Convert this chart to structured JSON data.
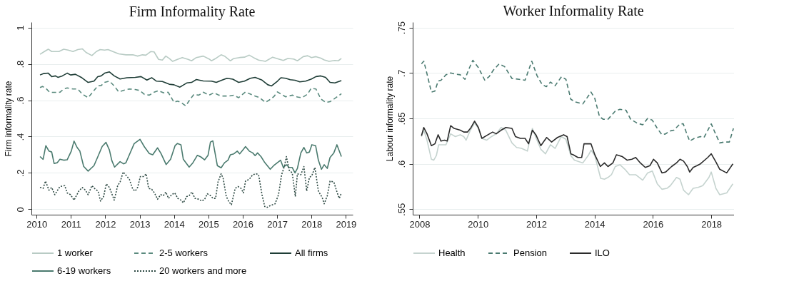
{
  "chart_data": [
    {
      "type": "line",
      "title": "Firm Informality Rate",
      "ylabel": "Firm informality rate",
      "xlim": [
        2009.85,
        2019.2
      ],
      "ylim": [
        -0.03,
        1.03
      ],
      "xticks": [
        2010,
        2011,
        2012,
        2013,
        2014,
        2015,
        2016,
        2017,
        2018,
        2019
      ],
      "yticks": [
        {
          "value": 0,
          "label": "0"
        },
        {
          "value": 0.2,
          "label": ".2"
        },
        {
          "value": 0.4,
          "label": ".4"
        },
        {
          "value": 0.6,
          "label": ".6"
        },
        {
          "value": 0.8,
          "label": ".8"
        },
        {
          "value": 1,
          "label": "1"
        }
      ],
      "grid": "y",
      "legend": "bottom",
      "marker": "none",
      "series": [
        {
          "name": "1 worker",
          "color": "#b8cbc4",
          "line_style": "solid",
          "x": [
            2010.1,
            2010.21,
            2010.34,
            2010.44,
            2010.65,
            2010.79,
            2010.92,
            2011.06,
            2011.2,
            2011.33,
            2011.44,
            2011.61,
            2011.74,
            2011.85,
            2011.98,
            2012.08,
            2012.22,
            2012.39,
            2012.6,
            2012.8,
            2012.94,
            2013.08,
            2013.18,
            2013.32,
            2013.42,
            2013.55,
            2013.66,
            2013.76,
            2013.86,
            2013.96,
            2014.1,
            2014.24,
            2014.41,
            2014.51,
            2014.65,
            2014.85,
            2015.02,
            2015.09,
            2015.23,
            2015.37,
            2015.47,
            2015.64,
            2015.74,
            2015.91,
            2016.05,
            2016.19,
            2016.32,
            2016.46,
            2016.66,
            2016.87,
            2017.04,
            2017.18,
            2017.31,
            2017.48,
            2017.59,
            2017.76,
            2017.89,
            2018.0,
            2018.13,
            2018.27,
            2018.37,
            2018.51,
            2018.68,
            2018.78,
            2018.87
          ],
          "values": [
            0.853,
            0.866,
            0.881,
            0.868,
            0.868,
            0.881,
            0.876,
            0.868,
            0.879,
            0.883,
            0.863,
            0.846,
            0.868,
            0.879,
            0.876,
            0.879,
            0.868,
            0.855,
            0.85,
            0.85,
            0.843,
            0.85,
            0.848,
            0.868,
            0.866,
            0.825,
            0.821,
            0.843,
            0.83,
            0.814,
            0.825,
            0.835,
            0.825,
            0.817,
            0.835,
            0.843,
            0.827,
            0.817,
            0.832,
            0.85,
            0.843,
            0.817,
            0.83,
            0.835,
            0.837,
            0.848,
            0.834,
            0.821,
            0.814,
            0.837,
            0.827,
            0.819,
            0.83,
            0.827,
            0.817,
            0.84,
            0.845,
            0.835,
            0.84,
            0.832,
            0.822,
            0.814,
            0.819,
            0.817,
            0.83
          ]
        },
        {
          "name": "2-5 workers",
          "color": "#5a8a7e",
          "line_style": "dashed",
          "x": [
            2010.1,
            2010.17,
            2010.27,
            2010.38,
            2010.51,
            2010.68,
            2010.79,
            2010.89,
            2011.06,
            2011.2,
            2011.33,
            2011.5,
            2011.64,
            2011.78,
            2011.88,
            2011.98,
            2012.12,
            2012.26,
            2012.39,
            2012.56,
            2012.7,
            2012.87,
            2013.01,
            2013.14,
            2013.28,
            2013.42,
            2013.55,
            2013.69,
            2013.83,
            2014.0,
            2014.1,
            2014.2,
            2014.34,
            2014.48,
            2014.58,
            2014.72,
            2014.85,
            2015.02,
            2015.16,
            2015.3,
            2015.43,
            2015.6,
            2015.74,
            2015.88,
            2016.08,
            2016.19,
            2016.36,
            2016.49,
            2016.66,
            2016.77,
            2016.9,
            2017.01,
            2017.11,
            2017.25,
            2017.45,
            2017.59,
            2017.72,
            2017.89,
            2017.99,
            2018.13,
            2018.27,
            2018.41,
            2018.54,
            2018.71,
            2018.87
          ],
          "values": [
            0.67,
            0.676,
            0.666,
            0.644,
            0.643,
            0.644,
            0.662,
            0.668,
            0.662,
            0.662,
            0.634,
            0.614,
            0.646,
            0.679,
            0.681,
            0.698,
            0.705,
            0.679,
            0.646,
            0.656,
            0.662,
            0.659,
            0.653,
            0.632,
            0.628,
            0.644,
            0.653,
            0.641,
            0.644,
            0.588,
            0.595,
            0.588,
            0.569,
            0.608,
            0.632,
            0.628,
            0.644,
            0.628,
            0.641,
            0.628,
            0.623,
            0.623,
            0.628,
            0.614,
            0.646,
            0.636,
            0.623,
            0.614,
            0.588,
            0.601,
            0.619,
            0.646,
            0.634,
            0.619,
            0.628,
            0.618,
            0.614,
            0.634,
            0.666,
            0.662,
            0.608,
            0.588,
            0.592,
            0.614,
            0.636
          ]
        },
        {
          "name": "All firms",
          "color": "#1e3d36",
          "line_style": "solid",
          "x": [
            2010.1,
            2010.21,
            2010.34,
            2010.44,
            2010.55,
            2010.62,
            2010.75,
            2010.89,
            2010.99,
            2011.13,
            2011.3,
            2011.5,
            2011.67,
            2011.78,
            2011.88,
            2011.98,
            2012.12,
            2012.26,
            2012.43,
            2012.63,
            2012.87,
            2013.04,
            2013.21,
            2013.35,
            2013.49,
            2013.66,
            2013.86,
            2014.0,
            2014.17,
            2014.37,
            2014.51,
            2014.65,
            2014.85,
            2015.09,
            2015.23,
            2015.4,
            2015.54,
            2015.71,
            2015.88,
            2016.05,
            2016.22,
            2016.36,
            2016.56,
            2016.73,
            2016.84,
            2017.01,
            2017.11,
            2017.25,
            2017.38,
            2017.52,
            2017.66,
            2017.83,
            2018.0,
            2018.13,
            2018.27,
            2018.41,
            2018.54,
            2018.68,
            2018.87
          ],
          "values": [
            0.739,
            0.747,
            0.749,
            0.73,
            0.734,
            0.726,
            0.734,
            0.749,
            0.739,
            0.743,
            0.726,
            0.698,
            0.705,
            0.73,
            0.734,
            0.749,
            0.756,
            0.734,
            0.717,
            0.724,
            0.726,
            0.73,
            0.711,
            0.724,
            0.705,
            0.703,
            0.688,
            0.685,
            0.672,
            0.695,
            0.698,
            0.714,
            0.706,
            0.705,
            0.698,
            0.711,
            0.721,
            0.716,
            0.698,
            0.705,
            0.721,
            0.726,
            0.711,
            0.685,
            0.679,
            0.705,
            0.724,
            0.721,
            0.713,
            0.71,
            0.701,
            0.705,
            0.717,
            0.73,
            0.734,
            0.726,
            0.698,
            0.695,
            0.708
          ]
        },
        {
          "name": "6-19 workers",
          "color": "#4a7a6e",
          "line_style": "solid",
          "x": [
            2010.1,
            2010.19,
            2010.27,
            2010.36,
            2010.44,
            2010.51,
            2010.6,
            2010.68,
            2010.79,
            2010.89,
            2011.01,
            2011.09,
            2011.18,
            2011.26,
            2011.37,
            2011.5,
            2011.67,
            2011.78,
            2011.91,
            2012.02,
            2012.12,
            2012.19,
            2012.27,
            2012.43,
            2012.53,
            2012.6,
            2012.7,
            2012.84,
            2013.01,
            2013.14,
            2013.28,
            2013.38,
            2013.52,
            2013.62,
            2013.77,
            2013.9,
            2014.03,
            2014.1,
            2014.2,
            2014.27,
            2014.44,
            2014.55,
            2014.68,
            2014.78,
            2014.89,
            2014.99,
            2015.06,
            2015.13,
            2015.26,
            2015.37,
            2015.47,
            2015.57,
            2015.64,
            2015.74,
            2015.84,
            2015.91,
            2016.02,
            2016.08,
            2016.19,
            2016.29,
            2016.36,
            2016.43,
            2016.53,
            2016.63,
            2016.8,
            2016.9,
            2017.1,
            2017.18,
            2017.27,
            2017.35,
            2017.44,
            2017.52,
            2017.59,
            2017.69,
            2017.78,
            2017.86,
            2017.94,
            2018.01,
            2018.12,
            2018.2,
            2018.29,
            2018.37,
            2018.46,
            2018.54,
            2018.65,
            2018.74,
            2018.87
          ],
          "values": [
            0.29,
            0.275,
            0.35,
            0.32,
            0.315,
            0.252,
            0.256,
            0.275,
            0.27,
            0.272,
            0.32,
            0.375,
            0.34,
            0.32,
            0.236,
            0.21,
            0.24,
            0.288,
            0.346,
            0.368,
            0.326,
            0.268,
            0.232,
            0.262,
            0.25,
            0.256,
            0.3,
            0.361,
            0.385,
            0.343,
            0.307,
            0.3,
            0.338,
            0.307,
            0.246,
            0.275,
            0.35,
            0.362,
            0.355,
            0.275,
            0.232,
            0.256,
            0.297,
            0.288,
            0.272,
            0.297,
            0.37,
            0.376,
            0.24,
            0.228,
            0.256,
            0.27,
            0.3,
            0.305,
            0.32,
            0.305,
            0.33,
            0.345,
            0.32,
            0.31,
            0.295,
            0.31,
            0.29,
            0.26,
            0.22,
            0.24,
            0.27,
            0.23,
            0.245,
            0.23,
            0.23,
            0.2,
            0.225,
            0.31,
            0.34,
            0.31,
            0.315,
            0.355,
            0.35,
            0.27,
            0.22,
            0.245,
            0.225,
            0.285,
            0.31,
            0.355,
            0.29
          ]
        },
        {
          "name": "20 workers and more",
          "color": "#2e4a44",
          "line_style": "dotted",
          "x": [
            2010.1,
            2010.19,
            2010.26,
            2010.36,
            2010.44,
            2010.53,
            2010.68,
            2010.82,
            2010.89,
            2010.99,
            2011.09,
            2011.23,
            2011.33,
            2011.42,
            2011.5,
            2011.61,
            2011.71,
            2011.79,
            2011.86,
            2011.95,
            2012.03,
            2012.12,
            2012.26,
            2012.36,
            2012.43,
            2012.52,
            2012.61,
            2012.7,
            2012.8,
            2012.87,
            2012.94,
            2013.02,
            2013.11,
            2013.19,
            2013.26,
            2013.35,
            2013.43,
            2013.52,
            2013.61,
            2013.69,
            2013.76,
            2013.84,
            2013.93,
            2014.02,
            2014.11,
            2014.2,
            2014.27,
            2014.37,
            2014.44,
            2014.52,
            2014.61,
            2014.72,
            2014.81,
            2014.89,
            2014.97,
            2015.06,
            2015.13,
            2015.21,
            2015.28,
            2015.37,
            2015.43,
            2015.52,
            2015.6,
            2015.67,
            2015.78,
            2015.86,
            2015.95,
            2016.02,
            2016.08,
            2016.19,
            2016.29,
            2016.39,
            2016.46,
            2016.56,
            2016.64,
            2016.71,
            2016.8,
            2016.94,
            2017.04,
            2017.13,
            2017.21,
            2017.27,
            2017.35,
            2017.44,
            2017.53,
            2017.59,
            2017.69,
            2017.78,
            2017.86,
            2017.94,
            2018.01,
            2018.1,
            2018.2,
            2018.31,
            2018.37,
            2018.46,
            2018.54,
            2018.65,
            2018.75,
            2018.81,
            2018.87
          ],
          "values": [
            0.12,
            0.115,
            0.155,
            0.105,
            0.12,
            0.08,
            0.125,
            0.13,
            0.09,
            0.08,
            0.05,
            0.1,
            0.12,
            0.105,
            0.08,
            0.13,
            0.11,
            0.1,
            0.045,
            0.07,
            0.14,
            0.12,
            0.05,
            0.13,
            0.15,
            0.205,
            0.185,
            0.165,
            0.11,
            0.1,
            0.12,
            0.18,
            0.18,
            0.195,
            0.115,
            0.11,
            0.09,
            0.055,
            0.08,
            0.075,
            0.095,
            0.06,
            0.08,
            0.09,
            0.06,
            0.05,
            0.035,
            0.07,
            0.075,
            0.095,
            0.06,
            0.055,
            0.045,
            0.055,
            0.085,
            0.075,
            0.06,
            0.06,
            0.15,
            0.195,
            0.17,
            0.07,
            0.04,
            0.025,
            0.115,
            0.125,
            0.115,
            0.09,
            0.155,
            0.165,
            0.19,
            0.195,
            0.19,
            0.08,
            0.015,
            0.01,
            0.02,
            0.03,
            0.08,
            0.19,
            0.235,
            0.29,
            0.215,
            0.2,
            0.07,
            0.195,
            0.19,
            0.235,
            0.1,
            0.175,
            0.185,
            0.23,
            0.1,
            0.065,
            0.03,
            0.075,
            0.155,
            0.15,
            0.09,
            0.06,
            0.09
          ]
        }
      ]
    },
    {
      "type": "line",
      "title": "Worker Informality Rate",
      "ylabel": "Labour informality rate",
      "xlim": [
        2007.77,
        2018.78
      ],
      "ylim": [
        0.544,
        0.756
      ],
      "xticks": [
        2008,
        2010,
        2012,
        2014,
        2016,
        2018
      ],
      "yticks": [
        {
          "value": 0.55,
          "label": ".55"
        },
        {
          "value": 0.6,
          "label": ".6"
        },
        {
          "value": 0.65,
          "label": ".65"
        },
        {
          "value": 0.7,
          "label": ".7"
        },
        {
          "value": 0.75,
          "label": ".75"
        }
      ],
      "grid": "y",
      "legend": "bottom",
      "marker": "none",
      "series": [
        {
          "name": "Health",
          "color": "#c5d3cf",
          "line_style": "solid",
          "x": [
            2008.07,
            2008.15,
            2008.26,
            2008.41,
            2008.49,
            2008.58,
            2008.66,
            2008.78,
            2008.91,
            2009.07,
            2009.23,
            2009.4,
            2009.52,
            2009.6,
            2009.73,
            2009.89,
            2010.02,
            2010.14,
            2010.3,
            2010.47,
            2010.63,
            2010.8,
            2010.96,
            2011.17,
            2011.33,
            2011.5,
            2011.7,
            2011.87,
            2011.99,
            2012.16,
            2012.32,
            2012.49,
            2012.65,
            2012.86,
            2013.02,
            2013.19,
            2013.31,
            2013.6,
            2013.8,
            2013.88,
            2014.01,
            2014.21,
            2014.34,
            2014.46,
            2014.58,
            2014.71,
            2014.87,
            2015.04,
            2015.2,
            2015.41,
            2015.65,
            2015.82,
            2015.98,
            2016.15,
            2016.31,
            2016.48,
            2016.6,
            2016.81,
            2016.93,
            2017.05,
            2017.22,
            2017.38,
            2017.55,
            2017.71,
            2017.92,
            2018.0,
            2018.16,
            2018.29,
            2018.53,
            2018.74
          ],
          "values": [
            0.63,
            0.637,
            0.626,
            0.605,
            0.604,
            0.609,
            0.621,
            0.621,
            0.621,
            0.633,
            0.63,
            0.632,
            0.63,
            0.626,
            0.636,
            0.645,
            0.639,
            0.628,
            0.626,
            0.63,
            0.633,
            0.64,
            0.637,
            0.623,
            0.618,
            0.617,
            0.614,
            0.639,
            0.629,
            0.616,
            0.611,
            0.621,
            0.617,
            0.63,
            0.627,
            0.609,
            0.604,
            0.601,
            0.61,
            0.615,
            0.609,
            0.584,
            0.583,
            0.585,
            0.588,
            0.597,
            0.599,
            0.594,
            0.588,
            0.588,
            0.582,
            0.59,
            0.592,
            0.578,
            0.572,
            0.573,
            0.576,
            0.585,
            0.583,
            0.571,
            0.566,
            0.573,
            0.574,
            0.576,
            0.585,
            0.591,
            0.573,
            0.566,
            0.568,
            0.578
          ]
        },
        {
          "name": "Pension",
          "color": "#4a7a70",
          "line_style": "dashed",
          "x": [
            2008.07,
            2008.15,
            2008.26,
            2008.41,
            2008.53,
            2008.64,
            2008.74,
            2008.91,
            2009.07,
            2009.19,
            2009.4,
            2009.56,
            2009.69,
            2009.83,
            2010.02,
            2010.24,
            2010.39,
            2010.53,
            2010.73,
            2010.92,
            2011.17,
            2011.42,
            2011.62,
            2011.85,
            2012.03,
            2012.21,
            2012.35,
            2012.49,
            2012.65,
            2012.87,
            2013.02,
            2013.19,
            2013.35,
            2013.6,
            2013.88,
            2014.01,
            2014.17,
            2014.3,
            2014.46,
            2014.71,
            2014.87,
            2015.08,
            2015.24,
            2015.45,
            2015.65,
            2015.82,
            2015.98,
            2016.15,
            2016.31,
            2016.44,
            2016.56,
            2016.72,
            2016.93,
            2017.04,
            2017.14,
            2017.26,
            2017.42,
            2017.63,
            2017.75,
            2018.0,
            2018.12,
            2018.29,
            2018.45,
            2018.62,
            2018.76
          ],
          "values": [
            0.71,
            0.713,
            0.699,
            0.679,
            0.68,
            0.691,
            0.692,
            0.698,
            0.7,
            0.699,
            0.698,
            0.693,
            0.704,
            0.714,
            0.706,
            0.692,
            0.696,
            0.703,
            0.71,
            0.707,
            0.694,
            0.693,
            0.692,
            0.713,
            0.697,
            0.687,
            0.685,
            0.69,
            0.686,
            0.696,
            0.693,
            0.671,
            0.668,
            0.666,
            0.679,
            0.672,
            0.652,
            0.649,
            0.649,
            0.658,
            0.66,
            0.659,
            0.649,
            0.645,
            0.643,
            0.65,
            0.648,
            0.639,
            0.632,
            0.633,
            0.636,
            0.637,
            0.644,
            0.644,
            0.635,
            0.625,
            0.628,
            0.63,
            0.629,
            0.644,
            0.635,
            0.623,
            0.624,
            0.624,
            0.639
          ]
        },
        {
          "name": "ILO",
          "color": "#2b2b2b",
          "line_style": "solid",
          "x": [
            2008.07,
            2008.15,
            2008.26,
            2008.41,
            2008.53,
            2008.64,
            2008.74,
            2008.86,
            2008.95,
            2009.07,
            2009.19,
            2009.4,
            2009.52,
            2009.65,
            2009.77,
            2009.89,
            2010.02,
            2010.14,
            2010.35,
            2010.51,
            2010.63,
            2010.8,
            2010.96,
            2011.17,
            2011.29,
            2011.46,
            2011.62,
            2011.74,
            2011.87,
            2011.99,
            2012.16,
            2012.36,
            2012.53,
            2012.73,
            2012.94,
            2013.06,
            2013.19,
            2013.27,
            2013.43,
            2013.56,
            2013.64,
            2013.88,
            2014.01,
            2014.2,
            2014.34,
            2014.46,
            2014.63,
            2014.75,
            2014.95,
            2015.12,
            2015.28,
            2015.41,
            2015.57,
            2015.74,
            2015.9,
            2016.02,
            2016.15,
            2016.31,
            2016.44,
            2016.64,
            2016.81,
            2016.93,
            2017.05,
            2017.18,
            2017.26,
            2017.38,
            2017.51,
            2017.63,
            2017.88,
            2018.0,
            2018.16,
            2018.29,
            2018.53,
            2018.74
          ],
          "values": [
            0.631,
            0.64,
            0.633,
            0.62,
            0.622,
            0.632,
            0.625,
            0.626,
            0.625,
            0.642,
            0.639,
            0.637,
            0.635,
            0.635,
            0.64,
            0.647,
            0.64,
            0.628,
            0.632,
            0.635,
            0.633,
            0.637,
            0.64,
            0.639,
            0.63,
            0.628,
            0.628,
            0.622,
            0.637,
            0.632,
            0.62,
            0.629,
            0.624,
            0.629,
            0.632,
            0.63,
            0.611,
            0.61,
            0.607,
            0.607,
            0.622,
            0.622,
            0.61,
            0.597,
            0.601,
            0.597,
            0.601,
            0.61,
            0.608,
            0.604,
            0.605,
            0.607,
            0.601,
            0.596,
            0.598,
            0.605,
            0.601,
            0.59,
            0.591,
            0.597,
            0.601,
            0.605,
            0.603,
            0.597,
            0.591,
            0.596,
            0.598,
            0.6,
            0.607,
            0.611,
            0.602,
            0.594,
            0.59,
            0.6
          ]
        }
      ]
    }
  ]
}
